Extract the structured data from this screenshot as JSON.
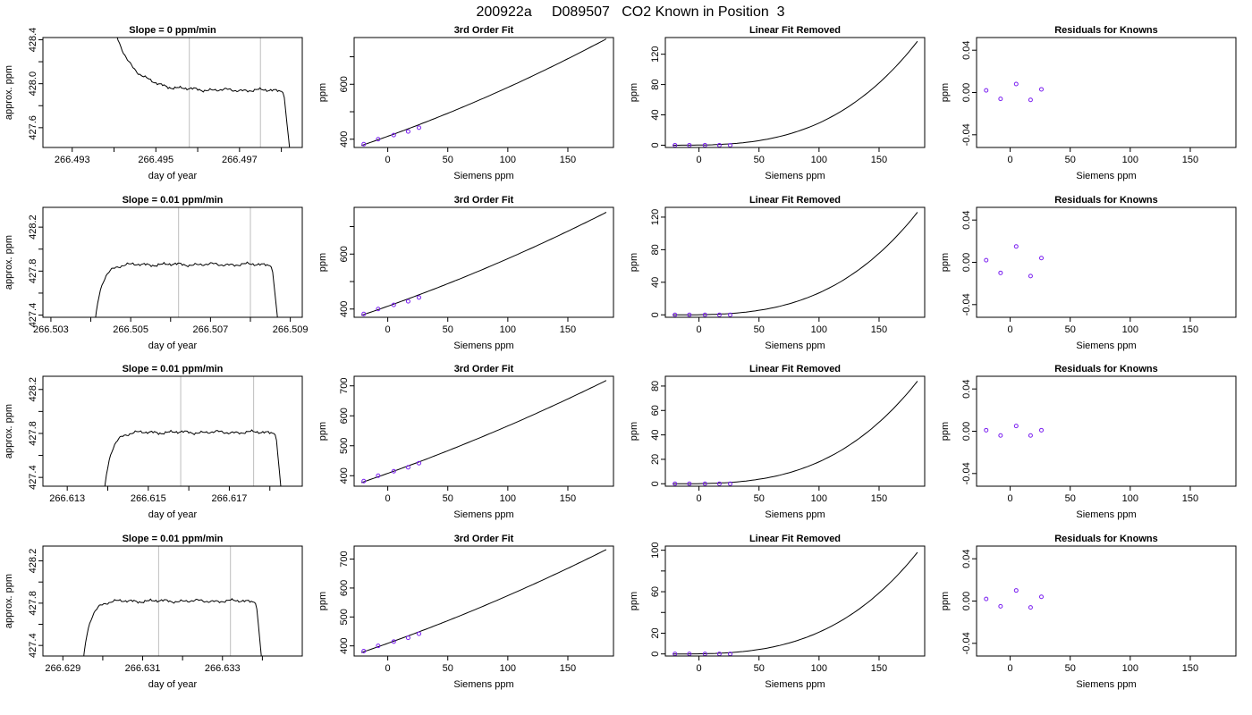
{
  "page_title": "200922a     D089507   CO2 Known in Position  3",
  "chart_data": [
    {
      "type": "line",
      "row": 0,
      "col": 0,
      "title": "Slope =  0  ppm/min",
      "xlabel": "day of year",
      "ylabel": "approx. ppm",
      "xlim": [
        266.4923,
        266.4985
      ],
      "ylim": [
        427.42,
        428.42
      ],
      "xticks": [
        266.493,
        266.494,
        266.495,
        266.496,
        266.497,
        266.498
      ],
      "xtick_labels": [
        "266.493",
        "",
        "266.495",
        "",
        "266.497",
        ""
      ],
      "yticks": [
        427.6,
        427.8,
        428.0,
        428.2,
        428.4
      ],
      "ytick_labels": [
        "427.6",
        "",
        "428.0",
        "",
        "428.4"
      ],
      "vlines": [
        266.4958,
        266.4975
      ],
      "trace": {
        "start": 266.494,
        "end": 266.4982,
        "plateau": 427.94,
        "shape": "decay",
        "from_value": 428.5,
        "end_value": 427.4
      }
    },
    {
      "type": "scatter+line",
      "row": 0,
      "col": 1,
      "title": "3rd Order Fit",
      "xlabel": "Siemens ppm",
      "ylabel": "ppm",
      "xlim": [
        -28,
        188
      ],
      "ylim": [
        370,
        770
      ],
      "xticks": [
        0,
        50,
        100,
        150
      ],
      "xtick_labels": [
        "0",
        "50",
        "100",
        "150"
      ],
      "yticks": [
        400,
        500,
        600,
        700
      ],
      "ytick_labels": [
        "400",
        "",
        "600",
        ""
      ],
      "points": {
        "x": [
          -20,
          -8,
          5,
          17,
          26
        ],
        "y": [
          382,
          400,
          415,
          428,
          442
        ]
      },
      "curve": {
        "x0": -22,
        "x1": 182,
        "y0": 377,
        "y1": 765,
        "curvature": 0.22
      }
    },
    {
      "type": "scatter+line",
      "row": 0,
      "col": 2,
      "title": "Linear Fit Removed",
      "xlabel": "Siemens ppm",
      "ylabel": "ppm",
      "xlim": [
        -28,
        188
      ],
      "ylim": [
        -3,
        142
      ],
      "xticks": [
        0,
        50,
        100,
        150
      ],
      "xtick_labels": [
        "0",
        "50",
        "100",
        "150"
      ],
      "yticks": [
        0,
        40,
        80,
        120
      ],
      "ytick_labels": [
        "0",
        "40",
        "80",
        "120"
      ],
      "points": {
        "x": [
          -20,
          -8,
          5,
          17,
          26
        ],
        "y": [
          0,
          0,
          0,
          0,
          0
        ]
      },
      "curve": {
        "x0": -22,
        "x1": 182,
        "top": 137
      }
    },
    {
      "type": "scatter",
      "row": 0,
      "col": 3,
      "title": "Residuals for Knowns",
      "xlabel": "Siemens ppm",
      "ylabel": "ppm",
      "xlim": [
        -28,
        188
      ],
      "ylim": [
        -0.052,
        0.052
      ],
      "xticks": [
        0,
        50,
        100,
        150
      ],
      "xtick_labels": [
        "0",
        "50",
        "100",
        "150"
      ],
      "yticks": [
        -0.04,
        0.0,
        0.04
      ],
      "ytick_labels": [
        "-0.04",
        "0.00",
        "0.04"
      ],
      "points": {
        "x": [
          -20,
          -8,
          5,
          17,
          26
        ],
        "y": [
          0.002,
          -0.006,
          0.008,
          -0.007,
          0.003
        ]
      }
    },
    {
      "type": "line",
      "row": 1,
      "col": 0,
      "title": "Slope =  0.01  ppm/min",
      "xlabel": "day of year",
      "ylabel": "approx. ppm",
      "xlim": [
        266.5028,
        266.5093
      ],
      "ylim": [
        427.38,
        428.38
      ],
      "xticks": [
        266.503,
        266.504,
        266.505,
        266.506,
        266.507,
        266.508,
        266.509
      ],
      "xtick_labels": [
        "266.503",
        "",
        "266.505",
        "",
        "266.507",
        "",
        "266.509"
      ],
      "yticks": [
        427.4,
        427.6,
        427.8,
        428.0,
        428.2
      ],
      "ytick_labels": [
        "427.4",
        "",
        "427.8",
        "",
        "428.2"
      ],
      "vlines": [
        266.5062,
        266.508
      ],
      "trace": {
        "start": 266.5041,
        "end": 266.5087,
        "plateau": 427.86,
        "shape": "rise",
        "from_value": 427.3,
        "end_value": 427.3
      }
    },
    {
      "type": "scatter+line",
      "row": 1,
      "col": 1,
      "title": "3rd Order Fit",
      "xlabel": "Siemens ppm",
      "ylabel": "ppm",
      "xlim": [
        -28,
        188
      ],
      "ylim": [
        370,
        770
      ],
      "xticks": [
        0,
        50,
        100,
        150
      ],
      "xtick_labels": [
        "0",
        "50",
        "100",
        "150"
      ],
      "yticks": [
        400,
        500,
        600,
        700
      ],
      "ytick_labels": [
        "400",
        "",
        "600",
        ""
      ],
      "points": {
        "x": [
          -20,
          -8,
          5,
          17,
          26
        ],
        "y": [
          382,
          400,
          415,
          428,
          442
        ]
      },
      "curve": {
        "x0": -22,
        "x1": 182,
        "y0": 377,
        "y1": 752,
        "curvature": 0.2
      }
    },
    {
      "type": "scatter+line",
      "row": 1,
      "col": 2,
      "title": "Linear Fit Removed",
      "xlabel": "Siemens ppm",
      "ylabel": "ppm",
      "xlim": [
        -28,
        188
      ],
      "ylim": [
        -3,
        132
      ],
      "xticks": [
        0,
        50,
        100,
        150
      ],
      "xtick_labels": [
        "0",
        "50",
        "100",
        "150"
      ],
      "yticks": [
        0,
        40,
        80,
        120
      ],
      "ytick_labels": [
        "0",
        "40",
        "80",
        "120"
      ],
      "points": {
        "x": [
          -20,
          -8,
          5,
          17,
          26
        ],
        "y": [
          0,
          0,
          0,
          0,
          0
        ]
      },
      "curve": {
        "x0": -22,
        "x1": 182,
        "top": 126
      }
    },
    {
      "type": "scatter",
      "row": 1,
      "col": 3,
      "title": "Residuals for Knowns",
      "xlabel": "Siemens ppm",
      "ylabel": "ppm",
      "xlim": [
        -28,
        188
      ],
      "ylim": [
        -0.052,
        0.052
      ],
      "xticks": [
        0,
        50,
        100,
        150
      ],
      "xtick_labels": [
        "0",
        "50",
        "100",
        "150"
      ],
      "yticks": [
        -0.04,
        0.0,
        0.04
      ],
      "ytick_labels": [
        "-0.04",
        "0.00",
        "0.04"
      ],
      "points": {
        "x": [
          -20,
          -8,
          5,
          17,
          26
        ],
        "y": [
          0.002,
          -0.01,
          0.015,
          -0.013,
          0.004
        ]
      }
    },
    {
      "type": "line",
      "row": 2,
      "col": 0,
      "title": "Slope =  0.01  ppm/min",
      "xlabel": "day of year",
      "ylabel": "approx. ppm",
      "xlim": [
        266.6124,
        266.6188
      ],
      "ylim": [
        427.32,
        428.32
      ],
      "xticks": [
        266.613,
        266.614,
        266.615,
        266.616,
        266.617,
        266.618
      ],
      "xtick_labels": [
        "266.613",
        "",
        "266.615",
        "",
        "266.617",
        ""
      ],
      "yticks": [
        427.4,
        427.6,
        427.8,
        428.0,
        428.2
      ],
      "ytick_labels": [
        "427.4",
        "",
        "427.8",
        "",
        "428.2"
      ],
      "vlines": [
        266.6158,
        266.6176
      ],
      "trace": {
        "start": 266.6139,
        "end": 266.6183,
        "plateau": 427.81,
        "shape": "rise",
        "from_value": 427.2,
        "end_value": 427.2
      }
    },
    {
      "type": "scatter+line",
      "row": 2,
      "col": 1,
      "title": "3rd Order Fit",
      "xlabel": "Siemens ppm",
      "ylabel": "ppm",
      "xlim": [
        -28,
        188
      ],
      "ylim": [
        365,
        732
      ],
      "xticks": [
        0,
        50,
        100,
        150
      ],
      "xtick_labels": [
        "0",
        "50",
        "100",
        "150"
      ],
      "yticks": [
        400,
        500,
        600,
        700
      ],
      "ytick_labels": [
        "400",
        "500",
        "600",
        "700"
      ],
      "points": {
        "x": [
          -20,
          -8,
          5,
          17,
          26
        ],
        "y": [
          382,
          400,
          415,
          428,
          442
        ]
      },
      "curve": {
        "x0": -22,
        "x1": 182,
        "y0": 377,
        "y1": 718,
        "curvature": 0.18
      }
    },
    {
      "type": "scatter+line",
      "row": 2,
      "col": 2,
      "title": "Linear Fit Removed",
      "xlabel": "Siemens ppm",
      "ylabel": "ppm",
      "xlim": [
        -28,
        188
      ],
      "ylim": [
        -2,
        88
      ],
      "xticks": [
        0,
        50,
        100,
        150
      ],
      "xtick_labels": [
        "0",
        "50",
        "100",
        "150"
      ],
      "yticks": [
        0,
        20,
        40,
        60,
        80
      ],
      "ytick_labels": [
        "0",
        "20",
        "40",
        "60",
        "80"
      ],
      "points": {
        "x": [
          -20,
          -8,
          5,
          17,
          26
        ],
        "y": [
          0,
          0,
          0,
          0,
          0
        ]
      },
      "curve": {
        "x0": -22,
        "x1": 182,
        "top": 84
      }
    },
    {
      "type": "scatter",
      "row": 2,
      "col": 3,
      "title": "Residuals for Knowns",
      "xlabel": "Siemens ppm",
      "ylabel": "ppm",
      "xlim": [
        -28,
        188
      ],
      "ylim": [
        -0.052,
        0.052
      ],
      "xticks": [
        0,
        50,
        100,
        150
      ],
      "xtick_labels": [
        "0",
        "50",
        "100",
        "150"
      ],
      "yticks": [
        -0.04,
        0.0,
        0.04
      ],
      "ytick_labels": [
        "-0.04",
        "0.00",
        "0.04"
      ],
      "points": {
        "x": [
          -20,
          -8,
          5,
          17,
          26
        ],
        "y": [
          0.001,
          -0.004,
          0.005,
          -0.004,
          0.001
        ]
      }
    },
    {
      "type": "line",
      "row": 3,
      "col": 0,
      "title": "Slope =  0.01  ppm/min",
      "xlabel": "day of year",
      "ylabel": "approx. ppm",
      "xlim": [
        266.6285,
        266.635
      ],
      "ylim": [
        427.3,
        428.34
      ],
      "xticks": [
        266.629,
        266.63,
        266.631,
        266.632,
        266.633,
        266.634
      ],
      "xtick_labels": [
        "266.629",
        "",
        "266.631",
        "",
        "266.633",
        ""
      ],
      "yticks": [
        427.4,
        427.6,
        427.8,
        428.0,
        428.2
      ],
      "ytick_labels": [
        "427.4",
        "",
        "427.8",
        "",
        "428.2"
      ],
      "vlines": [
        266.6314,
        266.6332
      ],
      "trace": {
        "start": 266.6295,
        "end": 266.634,
        "plateau": 427.82,
        "shape": "rise",
        "from_value": 427.2,
        "end_value": 427.2
      }
    },
    {
      "type": "scatter+line",
      "row": 3,
      "col": 1,
      "title": "3rd Order Fit",
      "xlabel": "Siemens ppm",
      "ylabel": "ppm",
      "xlim": [
        -28,
        188
      ],
      "ylim": [
        365,
        745
      ],
      "xticks": [
        0,
        50,
        100,
        150
      ],
      "xtick_labels": [
        "0",
        "50",
        "100",
        "150"
      ],
      "yticks": [
        400,
        500,
        600,
        700
      ],
      "ytick_labels": [
        "400",
        "500",
        "600",
        "700"
      ],
      "points": {
        "x": [
          -20,
          -8,
          5,
          17,
          26
        ],
        "y": [
          382,
          400,
          415,
          428,
          442
        ]
      },
      "curve": {
        "x0": -22,
        "x1": 182,
        "y0": 377,
        "y1": 733,
        "curvature": 0.19
      }
    },
    {
      "type": "scatter+line",
      "row": 3,
      "col": 2,
      "title": "Linear Fit Removed",
      "xlabel": "Siemens ppm",
      "ylabel": "ppm",
      "xlim": [
        -28,
        188
      ],
      "ylim": [
        -2,
        104
      ],
      "xticks": [
        0,
        50,
        100,
        150
      ],
      "xtick_labels": [
        "0",
        "50",
        "100",
        "150"
      ],
      "yticks": [
        0,
        20,
        40,
        60,
        80,
        100
      ],
      "ytick_labels": [
        "0",
        "20",
        "",
        "60",
        "",
        "100"
      ],
      "points": {
        "x": [
          -20,
          -8,
          5,
          17,
          26
        ],
        "y": [
          0,
          0,
          0,
          0,
          0
        ]
      },
      "curve": {
        "x0": -22,
        "x1": 182,
        "top": 98
      }
    },
    {
      "type": "scatter",
      "row": 3,
      "col": 3,
      "title": "Residuals for Knowns",
      "xlabel": "Siemens ppm",
      "ylabel": "ppm",
      "xlim": [
        -28,
        188
      ],
      "ylim": [
        -0.052,
        0.052
      ],
      "xticks": [
        0,
        50,
        100,
        150
      ],
      "xtick_labels": [
        "0",
        "50",
        "100",
        "150"
      ],
      "yticks": [
        -0.04,
        0.0,
        0.04
      ],
      "ytick_labels": [
        "-0.04",
        "0.00",
        "0.04"
      ],
      "points": {
        "x": [
          -20,
          -8,
          5,
          17,
          26
        ],
        "y": [
          0.002,
          -0.005,
          0.01,
          -0.006,
          0.004
        ]
      }
    }
  ]
}
